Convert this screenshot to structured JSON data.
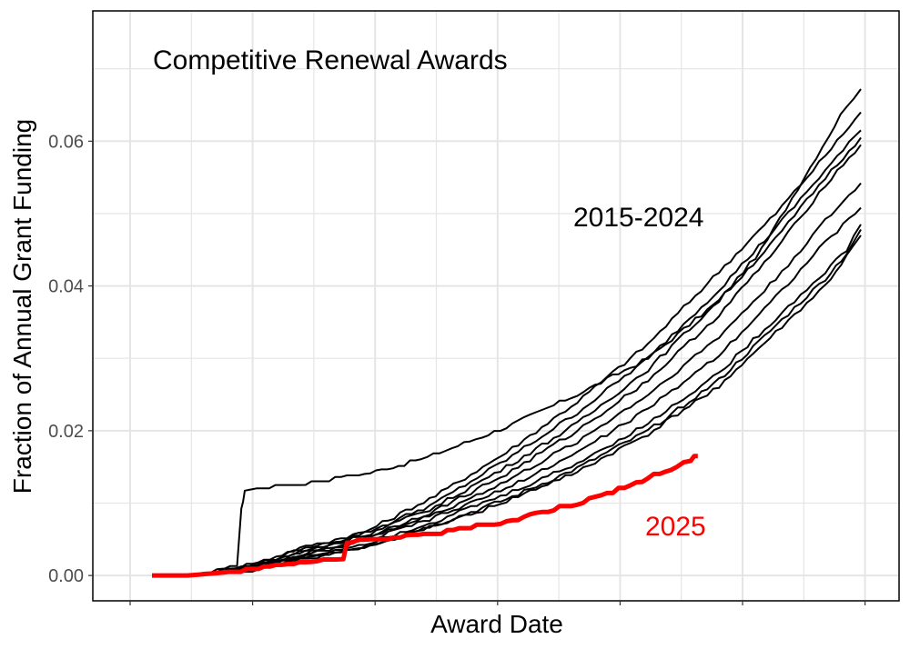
{
  "chart_data": {
    "type": "line",
    "title": "Competitive Renewal Awards",
    "xlabel": "Award Date",
    "ylabel": "Fraction of Annual Grant Funding",
    "x_domain": [
      0,
      1
    ],
    "ylim": [
      -0.0035,
      0.078
    ],
    "y_ticks": [
      0,
      0.02,
      0.04,
      0.06
    ],
    "y_tick_labels": [
      "0.00",
      "0.02",
      "0.04",
      "0.06"
    ],
    "x_tick_labels_shown": false,
    "grid": true,
    "annotations": {
      "historical": "2015-2024",
      "current": "2025"
    },
    "colors": {
      "historical": "#000000",
      "current": "#ff0000",
      "grid": "#e5e5e5"
    },
    "series": [
      {
        "values": [
          [
            0.0,
            0.0
          ],
          [
            0.055,
            0.0
          ],
          [
            0.1,
            0.0006
          ],
          [
            0.12,
            0.0015
          ],
          [
            0.126,
            0.009
          ],
          [
            0.131,
            0.0118
          ],
          [
            0.2,
            0.0125
          ],
          [
            0.3,
            0.014
          ],
          [
            0.38,
            0.016
          ],
          [
            0.5,
            0.0205
          ],
          [
            0.6,
            0.025
          ],
          [
            0.7,
            0.03
          ],
          [
            0.8,
            0.038
          ],
          [
            0.86,
            0.045
          ],
          [
            0.92,
            0.055
          ],
          [
            0.98,
            0.065
          ],
          [
            1.0,
            0.0672
          ]
        ]
      },
      {
        "values": [
          [
            0.0,
            0.0
          ],
          [
            0.05,
            0.0
          ],
          [
            0.1,
            0.0008
          ],
          [
            0.15,
            0.0018
          ],
          [
            0.2,
            0.0035
          ],
          [
            0.3,
            0.006
          ],
          [
            0.4,
            0.011
          ],
          [
            0.5,
            0.017
          ],
          [
            0.6,
            0.024
          ],
          [
            0.7,
            0.032
          ],
          [
            0.8,
            0.042
          ],
          [
            0.88,
            0.05
          ],
          [
            0.95,
            0.058
          ],
          [
            1.0,
            0.064
          ]
        ]
      },
      {
        "values": [
          [
            0.0,
            0.0
          ],
          [
            0.05,
            0.0
          ],
          [
            0.1,
            0.0006
          ],
          [
            0.15,
            0.0016
          ],
          [
            0.2,
            0.0032
          ],
          [
            0.3,
            0.0058
          ],
          [
            0.4,
            0.01
          ],
          [
            0.5,
            0.016
          ],
          [
            0.6,
            0.0225
          ],
          [
            0.7,
            0.03
          ],
          [
            0.8,
            0.0395
          ],
          [
            0.88,
            0.048
          ],
          [
            0.95,
            0.056
          ],
          [
            1.0,
            0.0615
          ]
        ]
      },
      {
        "values": [
          [
            0.0,
            0.0
          ],
          [
            0.05,
            0.0
          ],
          [
            0.1,
            0.0005
          ],
          [
            0.15,
            0.0014
          ],
          [
            0.2,
            0.003
          ],
          [
            0.3,
            0.0055
          ],
          [
            0.4,
            0.0095
          ],
          [
            0.5,
            0.015
          ],
          [
            0.6,
            0.021
          ],
          [
            0.7,
            0.0285
          ],
          [
            0.8,
            0.038
          ],
          [
            0.88,
            0.0465
          ],
          [
            0.95,
            0.055
          ],
          [
            1.0,
            0.0605
          ]
        ]
      },
      {
        "values": [
          [
            0.0,
            0.0
          ],
          [
            0.05,
            0.0
          ],
          [
            0.1,
            0.0005
          ],
          [
            0.15,
            0.0013
          ],
          [
            0.2,
            0.0028
          ],
          [
            0.3,
            0.0052
          ],
          [
            0.4,
            0.009
          ],
          [
            0.5,
            0.014
          ],
          [
            0.6,
            0.02
          ],
          [
            0.7,
            0.027
          ],
          [
            0.8,
            0.036
          ],
          [
            0.88,
            0.045
          ],
          [
            0.95,
            0.054
          ],
          [
            1.0,
            0.0595
          ]
        ]
      },
      {
        "values": [
          [
            0.0,
            0.0
          ],
          [
            0.05,
            0.0
          ],
          [
            0.1,
            0.0004
          ],
          [
            0.15,
            0.0012
          ],
          [
            0.2,
            0.0026
          ],
          [
            0.3,
            0.005
          ],
          [
            0.4,
            0.0085
          ],
          [
            0.5,
            0.013
          ],
          [
            0.6,
            0.0185
          ],
          [
            0.7,
            0.025
          ],
          [
            0.8,
            0.033
          ],
          [
            0.88,
            0.041
          ],
          [
            0.95,
            0.049
          ],
          [
            1.0,
            0.0542
          ]
        ]
      },
      {
        "values": [
          [
            0.0,
            0.0
          ],
          [
            0.05,
            0.0
          ],
          [
            0.1,
            0.0004
          ],
          [
            0.15,
            0.0011
          ],
          [
            0.2,
            0.0024
          ],
          [
            0.3,
            0.0047
          ],
          [
            0.4,
            0.008
          ],
          [
            0.5,
            0.012
          ],
          [
            0.6,
            0.017
          ],
          [
            0.7,
            0.023
          ],
          [
            0.8,
            0.0305
          ],
          [
            0.88,
            0.0385
          ],
          [
            0.95,
            0.046
          ],
          [
            1.0,
            0.0508
          ]
        ]
      },
      {
        "values": [
          [
            0.0,
            0.0
          ],
          [
            0.05,
            0.0
          ],
          [
            0.1,
            0.0003
          ],
          [
            0.15,
            0.001
          ],
          [
            0.2,
            0.0022
          ],
          [
            0.3,
            0.0044
          ],
          [
            0.4,
            0.0075
          ],
          [
            0.5,
            0.0112
          ],
          [
            0.6,
            0.0155
          ],
          [
            0.7,
            0.021
          ],
          [
            0.8,
            0.028
          ],
          [
            0.88,
            0.0355
          ],
          [
            0.95,
            0.042
          ],
          [
            0.98,
            0.045
          ],
          [
            1.0,
            0.0485
          ]
        ]
      },
      {
        "values": [
          [
            0.0,
            0.0
          ],
          [
            0.05,
            0.0
          ],
          [
            0.1,
            0.0003
          ],
          [
            0.15,
            0.0009
          ],
          [
            0.2,
            0.002
          ],
          [
            0.3,
            0.004
          ],
          [
            0.4,
            0.007
          ],
          [
            0.5,
            0.0105
          ],
          [
            0.6,
            0.0148
          ],
          [
            0.7,
            0.02
          ],
          [
            0.8,
            0.027
          ],
          [
            0.88,
            0.0345
          ],
          [
            0.95,
            0.041
          ],
          [
            0.98,
            0.0445
          ],
          [
            1.0,
            0.0478
          ]
        ]
      },
      {
        "values": [
          [
            0.0,
            0.0
          ],
          [
            0.05,
            0.0
          ],
          [
            0.1,
            0.0003
          ],
          [
            0.15,
            0.0009
          ],
          [
            0.2,
            0.0019
          ],
          [
            0.3,
            0.0038
          ],
          [
            0.4,
            0.0068
          ],
          [
            0.5,
            0.0102
          ],
          [
            0.6,
            0.0143
          ],
          [
            0.7,
            0.0195
          ],
          [
            0.8,
            0.0262
          ],
          [
            0.88,
            0.0335
          ],
          [
            0.95,
            0.04
          ],
          [
            0.98,
            0.044
          ],
          [
            1.0,
            0.047
          ]
        ]
      },
      {
        "values": [
          [
            0.0,
            0.0
          ],
          [
            0.05,
            0.0
          ],
          [
            0.1,
            0.0004
          ],
          [
            0.15,
            0.001
          ],
          [
            0.2,
            0.0016
          ],
          [
            0.25,
            0.0022
          ],
          [
            0.27,
            0.0024
          ],
          [
            0.275,
            0.0045
          ],
          [
            0.3,
            0.0048
          ],
          [
            0.35,
            0.0052
          ],
          [
            0.4,
            0.0058
          ],
          [
            0.45,
            0.0066
          ],
          [
            0.5,
            0.0074
          ],
          [
            0.55,
            0.0088
          ],
          [
            0.6,
            0.01
          ],
          [
            0.65,
            0.0115
          ],
          [
            0.7,
            0.0135
          ],
          [
            0.74,
            0.015
          ],
          [
            0.76,
            0.016
          ],
          [
            0.77,
            0.0165
          ]
        ],
        "highlight": true
      }
    ]
  }
}
